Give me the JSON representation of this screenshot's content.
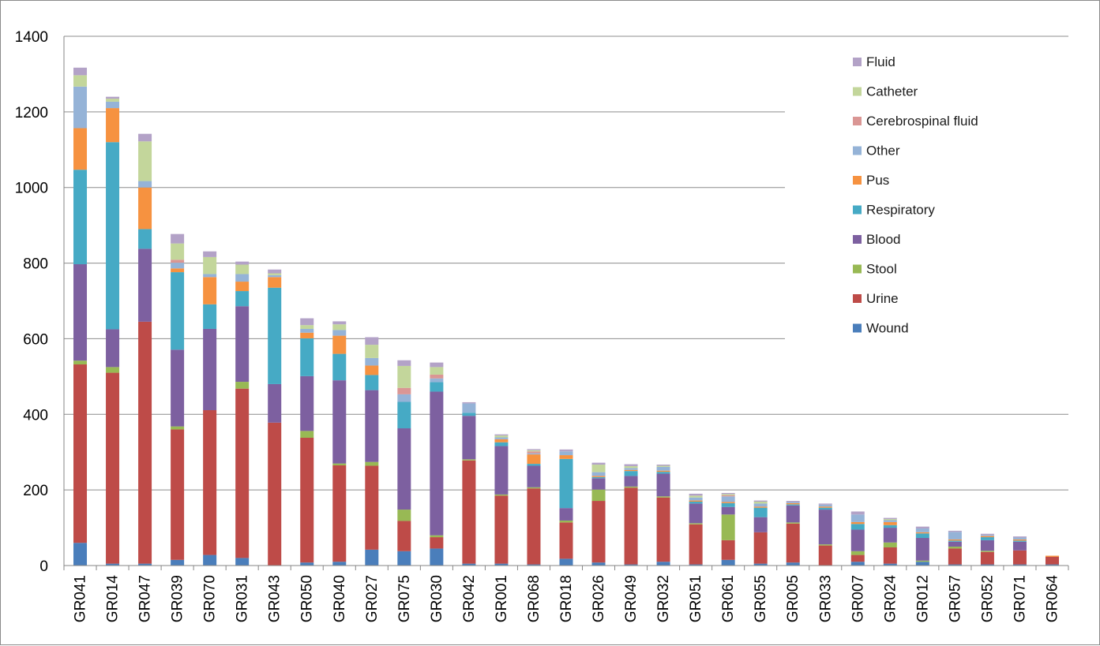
{
  "chart_data": {
    "type": "bar",
    "stacked": true,
    "categories": [
      "GR041",
      "GR014",
      "GR047",
      "GR039",
      "GR070",
      "GR031",
      "GR043",
      "GR050",
      "GR040",
      "GR027",
      "GR075",
      "GR030",
      "GR042",
      "GR001",
      "GR068",
      "GR018",
      "GR026",
      "GR049",
      "GR032",
      "GR051",
      "GR061",
      "GR055",
      "GR005",
      "GR033",
      "GR007",
      "GR024",
      "GR012",
      "GR057",
      "GR052",
      "GR071",
      "GR064"
    ],
    "ylim": [
      0,
      1400
    ],
    "yticks": [
      0,
      200,
      400,
      600,
      800,
      1000,
      1200,
      1400
    ],
    "grid": true,
    "legend_position": "right",
    "series": [
      {
        "name": "Wound",
        "color": "#4a7ebb",
        "values": [
          60,
          5,
          5,
          15,
          28,
          20,
          0,
          8,
          10,
          42,
          38,
          45,
          5,
          5,
          3,
          18,
          8,
          3,
          10,
          3,
          15,
          5,
          8,
          0,
          10,
          5,
          10,
          3,
          3,
          3,
          3
        ]
      },
      {
        "name": "Urine",
        "color": "#be4b48",
        "values": [
          472,
          505,
          640,
          345,
          383,
          448,
          378,
          330,
          255,
          222,
          80,
          30,
          273,
          180,
          201,
          96,
          163,
          203,
          170,
          106,
          52,
          83,
          103,
          53,
          18,
          43,
          0,
          42,
          33,
          37,
          20
        ]
      },
      {
        "name": "Stool",
        "color": "#98b954",
        "values": [
          10,
          15,
          0,
          8,
          0,
          18,
          0,
          18,
          5,
          10,
          30,
          5,
          3,
          3,
          3,
          5,
          30,
          3,
          3,
          3,
          68,
          0,
          3,
          3,
          10,
          13,
          3,
          5,
          3,
          0,
          0
        ]
      },
      {
        "name": "Blood",
        "color": "#7d60a0",
        "values": [
          255,
          100,
          193,
          203,
          215,
          200,
          102,
          145,
          220,
          190,
          215,
          380,
          115,
          128,
          57,
          33,
          30,
          28,
          60,
          52,
          20,
          40,
          45,
          92,
          57,
          39,
          60,
          13,
          28,
          23,
          0
        ]
      },
      {
        "name": "Respiratory",
        "color": "#46aac5",
        "values": [
          250,
          495,
          52,
          205,
          65,
          40,
          255,
          100,
          70,
          40,
          70,
          25,
          8,
          10,
          5,
          130,
          3,
          13,
          5,
          5,
          10,
          25,
          3,
          5,
          15,
          7,
          12,
          3,
          8,
          3,
          0
        ]
      },
      {
        "name": "Pus",
        "color": "#f69240",
        "values": [
          110,
          90,
          110,
          10,
          72,
          25,
          28,
          15,
          48,
          25,
          0,
          0,
          0,
          8,
          25,
          10,
          3,
          3,
          3,
          3,
          3,
          3,
          3,
          3,
          5,
          8,
          3,
          3,
          3,
          3,
          3
        ]
      },
      {
        "name": "Other",
        "color": "#95b3d7",
        "values": [
          110,
          17,
          17,
          15,
          8,
          20,
          5,
          10,
          15,
          20,
          20,
          10,
          25,
          5,
          3,
          10,
          10,
          5,
          10,
          8,
          15,
          8,
          3,
          5,
          20,
          5,
          10,
          20,
          3,
          5,
          0
        ]
      },
      {
        "name": "Cerebrospinal fluid",
        "color": "#da9694",
        "values": [
          0,
          0,
          0,
          8,
          0,
          0,
          0,
          0,
          0,
          0,
          17,
          10,
          0,
          0,
          5,
          0,
          0,
          0,
          0,
          0,
          3,
          0,
          0,
          0,
          0,
          0,
          0,
          0,
          0,
          0,
          0
        ]
      },
      {
        "name": "Catheter",
        "color": "#c3d69b",
        "values": [
          30,
          8,
          105,
          43,
          45,
          25,
          5,
          10,
          15,
          35,
          58,
          20,
          0,
          5,
          3,
          0,
          20,
          5,
          3,
          5,
          3,
          5,
          0,
          0,
          0,
          3,
          0,
          0,
          0,
          0,
          0
        ]
      },
      {
        "name": "Fluid",
        "color": "#b3a2c7",
        "values": [
          20,
          5,
          20,
          25,
          15,
          8,
          10,
          18,
          8,
          20,
          15,
          12,
          3,
          3,
          3,
          5,
          5,
          5,
          3,
          5,
          3,
          3,
          3,
          3,
          8,
          3,
          5,
          3,
          3,
          3,
          0
        ]
      }
    ],
    "legend_order": [
      "Fluid",
      "Catheter",
      "Cerebrospinal fluid",
      "Other",
      "Pus",
      "Respiratory",
      "Blood",
      "Stool",
      "Urine",
      "Wound"
    ]
  }
}
